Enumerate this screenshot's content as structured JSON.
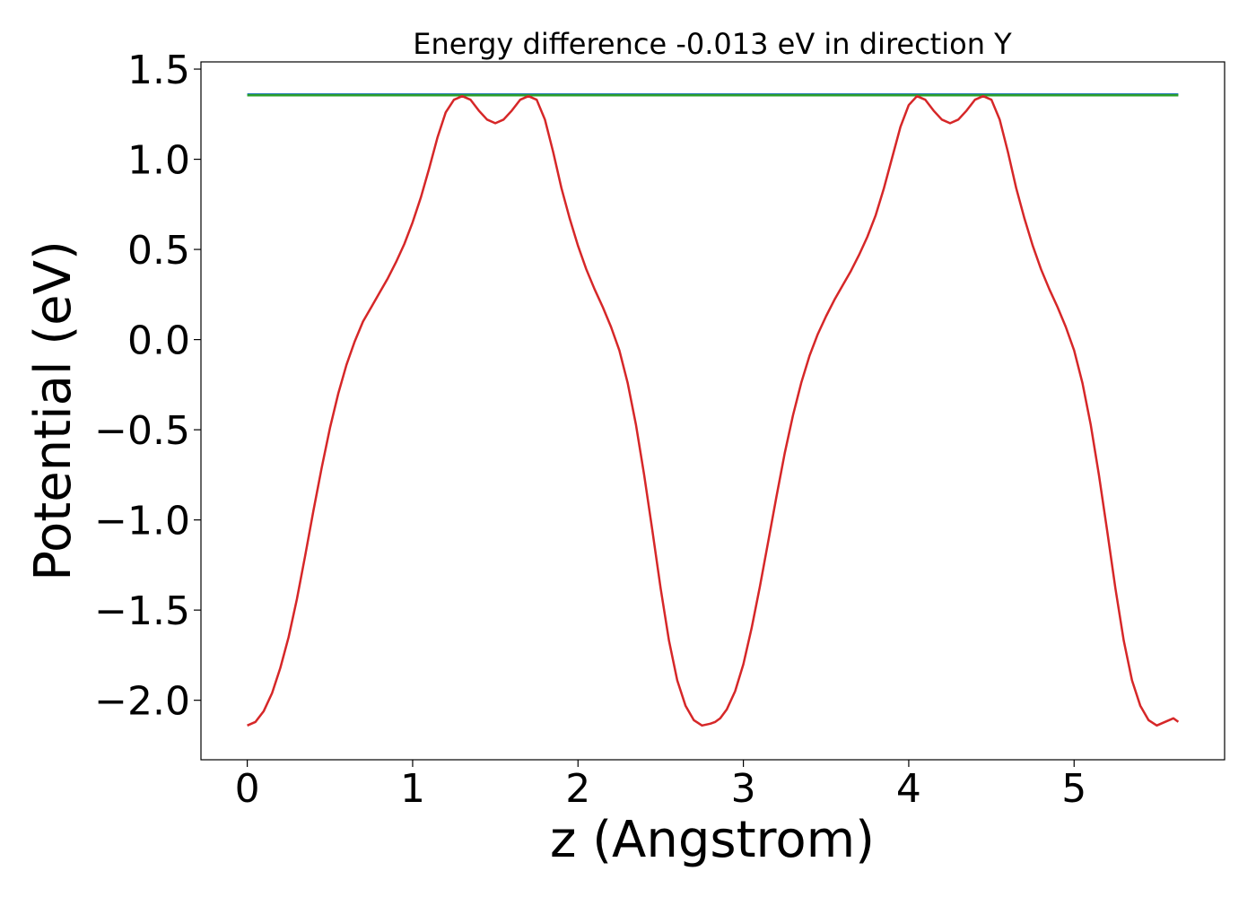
{
  "chart_data": {
    "type": "line",
    "title": "Energy difference -0.013 eV in direction Y",
    "xlabel": "z (Angstrom)",
    "ylabel": "Potential (eV)",
    "xlim": [
      -0.28,
      5.91
    ],
    "ylim": [
      -2.33,
      1.54
    ],
    "xticks": [
      0,
      1,
      2,
      3,
      4,
      5
    ],
    "xtick_labels": [
      "0",
      "1",
      "2",
      "3",
      "4",
      "5"
    ],
    "yticks": [
      -2.0,
      -1.5,
      -1.0,
      -0.5,
      0.0,
      0.5,
      1.0,
      1.5
    ],
    "ytick_labels": [
      "−2.0",
      "−1.5",
      "−1.0",
      "−0.5",
      "0.0",
      "0.5",
      "1.0",
      "1.5"
    ],
    "grid": false,
    "series": [
      {
        "color": "#1f77b4",
        "x": [
          0,
          5.63
        ],
        "y": [
          1.36,
          1.36
        ]
      },
      {
        "color": "#2ca02c",
        "x": [
          0,
          5.63
        ],
        "y": [
          1.355,
          1.355
        ]
      },
      {
        "color": "#d62728",
        "x": [
          0,
          0.05,
          0.1,
          0.15,
          0.2,
          0.25,
          0.3,
          0.35,
          0.4,
          0.45,
          0.5,
          0.55,
          0.6,
          0.65,
          0.7,
          0.75,
          0.8,
          0.85,
          0.9,
          0.95,
          1.0,
          1.05,
          1.1,
          1.15,
          1.2,
          1.25,
          1.3,
          1.35,
          1.4,
          1.45,
          1.5,
          1.55,
          1.6,
          1.65,
          1.7,
          1.75,
          1.8,
          1.85,
          1.9,
          1.95,
          2.0,
          2.05,
          2.1,
          2.15,
          2.2,
          2.25,
          2.3,
          2.35,
          2.4,
          2.45,
          2.5,
          2.55,
          2.6,
          2.65,
          2.7,
          2.75,
          2.8,
          2.83,
          2.86,
          2.9,
          2.95,
          3.0,
          3.05,
          3.1,
          3.15,
          3.2,
          3.25,
          3.3,
          3.35,
          3.4,
          3.45,
          3.5,
          3.55,
          3.6,
          3.65,
          3.7,
          3.75,
          3.8,
          3.85,
          3.9,
          3.95,
          4.0,
          4.05,
          4.1,
          4.15,
          4.2,
          4.25,
          4.3,
          4.35,
          4.4,
          4.45,
          4.5,
          4.55,
          4.6,
          4.65,
          4.7,
          4.75,
          4.8,
          4.85,
          4.9,
          4.95,
          5.0,
          5.05,
          5.1,
          5.15,
          5.2,
          5.25,
          5.3,
          5.35,
          5.4,
          5.45,
          5.5,
          5.55,
          5.6,
          5.63
        ],
        "y": [
          -2.14,
          -2.12,
          -2.06,
          -1.96,
          -1.82,
          -1.65,
          -1.44,
          -1.2,
          -0.95,
          -0.71,
          -0.49,
          -0.3,
          -0.14,
          -0.01,
          0.1,
          0.18,
          0.26,
          0.34,
          0.43,
          0.53,
          0.65,
          0.79,
          0.95,
          1.12,
          1.26,
          1.33,
          1.35,
          1.33,
          1.27,
          1.22,
          1.2,
          1.22,
          1.27,
          1.33,
          1.35,
          1.33,
          1.22,
          1.04,
          0.84,
          0.67,
          0.52,
          0.39,
          0.28,
          0.18,
          0.07,
          -0.06,
          -0.24,
          -0.47,
          -0.75,
          -1.06,
          -1.38,
          -1.67,
          -1.89,
          -2.03,
          -2.11,
          -2.14,
          -2.13,
          -2.12,
          -2.1,
          -2.05,
          -1.95,
          -1.8,
          -1.6,
          -1.37,
          -1.12,
          -0.87,
          -0.63,
          -0.42,
          -0.24,
          -0.09,
          0.03,
          0.13,
          0.22,
          0.3,
          0.38,
          0.47,
          0.57,
          0.69,
          0.84,
          1.01,
          1.18,
          1.3,
          1.35,
          1.33,
          1.27,
          1.22,
          1.2,
          1.22,
          1.27,
          1.33,
          1.35,
          1.33,
          1.22,
          1.04,
          0.84,
          0.67,
          0.52,
          0.39,
          0.28,
          0.18,
          0.07,
          -0.06,
          -0.24,
          -0.47,
          -0.75,
          -1.06,
          -1.38,
          -1.67,
          -1.89,
          -2.03,
          -2.11,
          -2.14,
          -2.12,
          -2.1,
          -2.12
        ]
      }
    ]
  }
}
